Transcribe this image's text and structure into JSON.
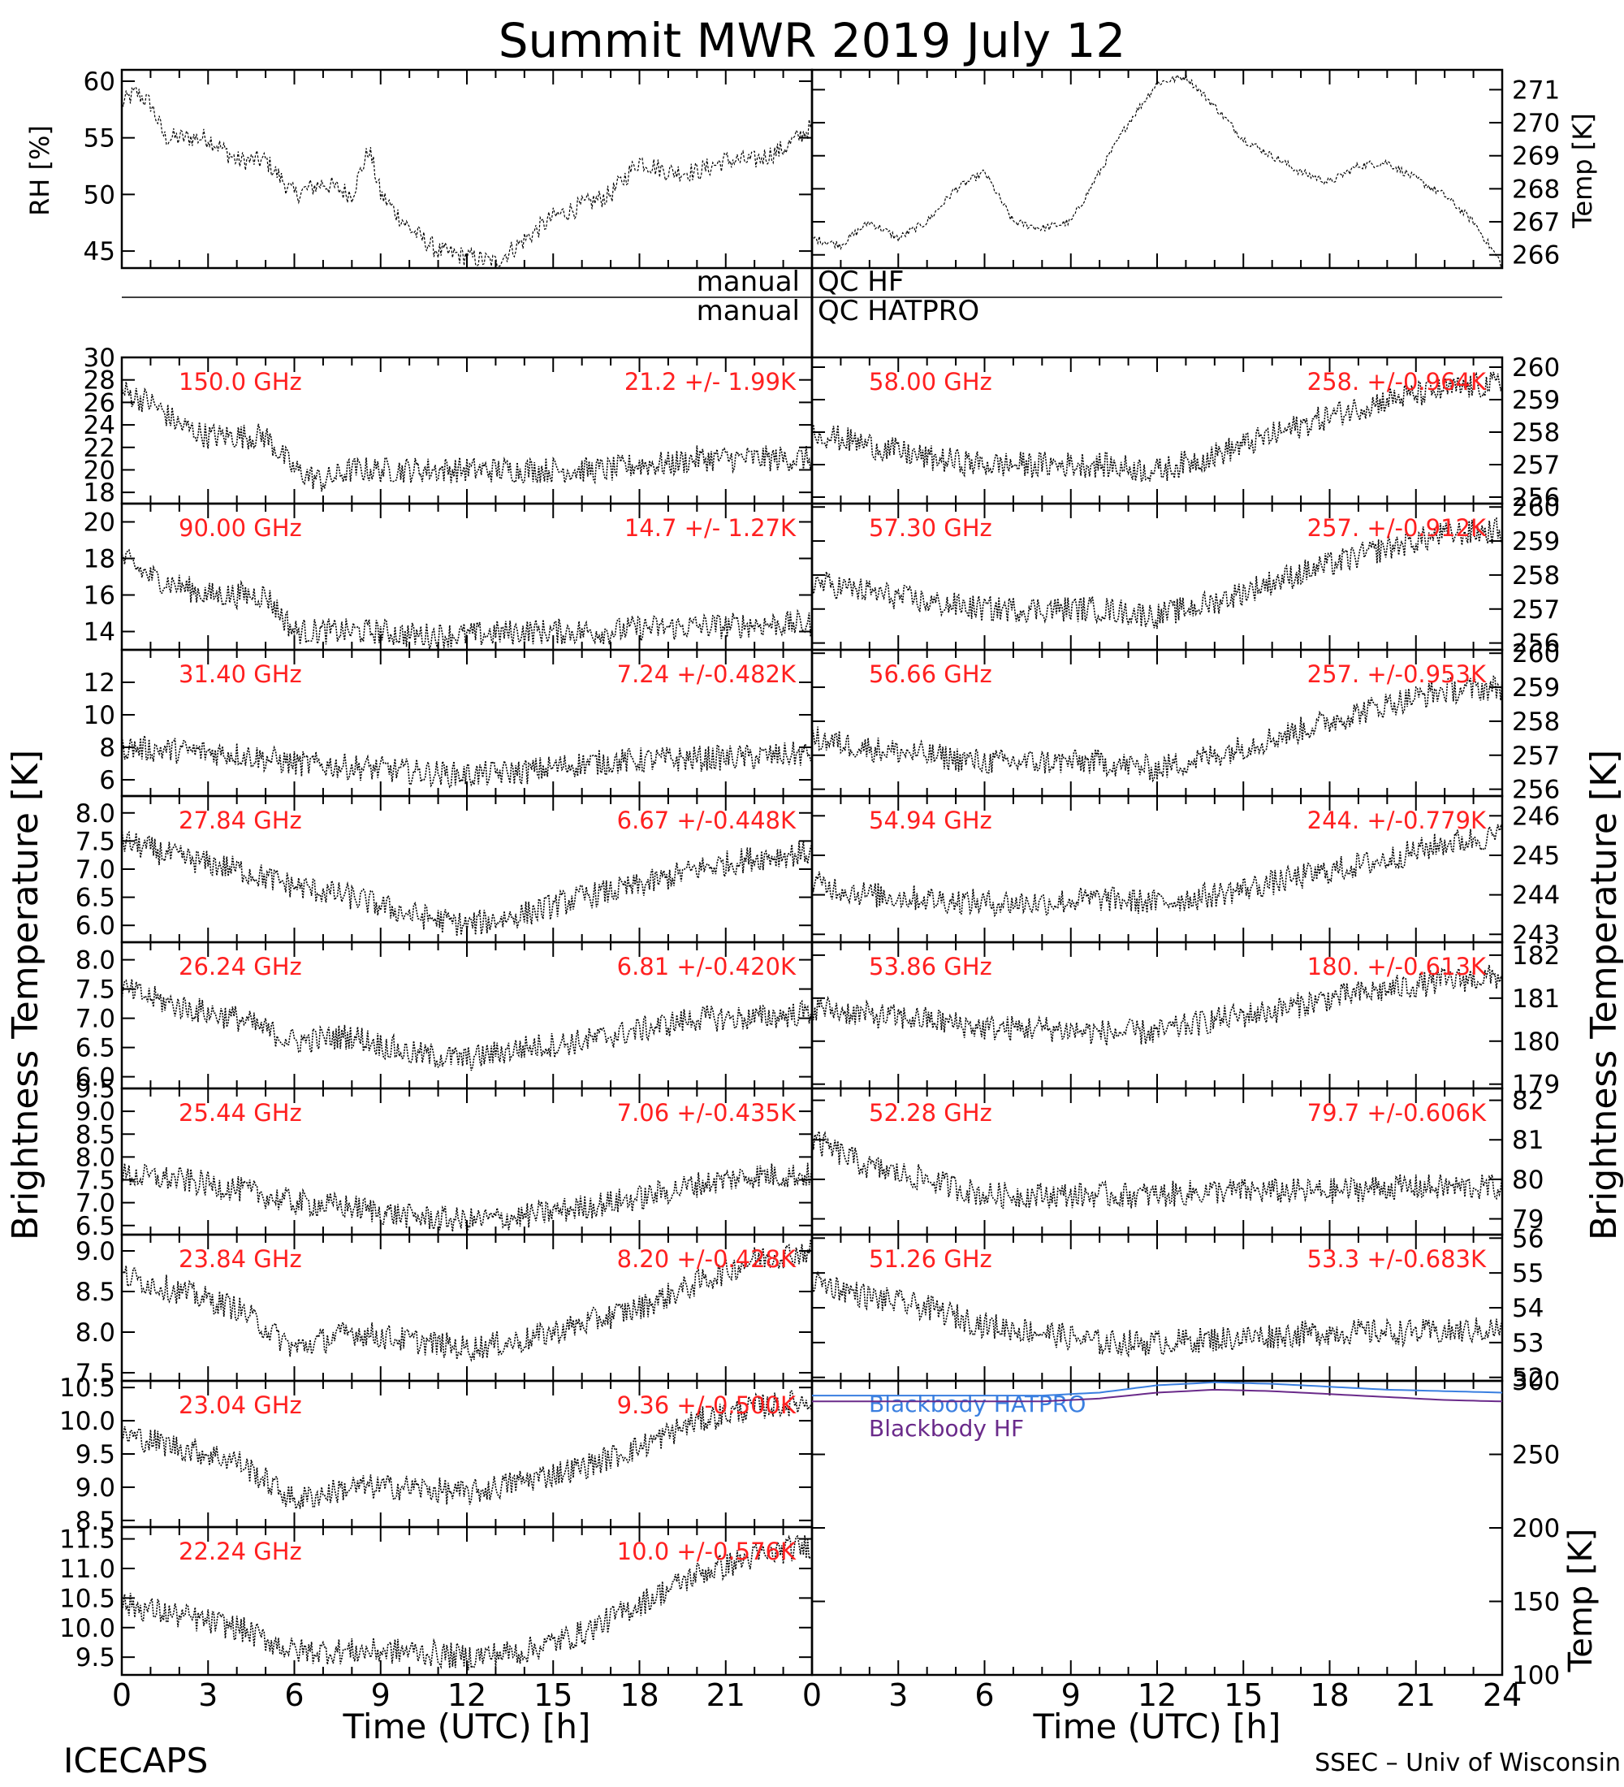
{
  "title": "Summit MWR 2019 July 12",
  "footer": {
    "left": "ICECAPS",
    "right": "SSEC – Univ of Wisconsin"
  },
  "x_axis": {
    "label": "Time (UTC) [h]",
    "ticks": [
      "0",
      "3",
      "6",
      "9",
      "12",
      "15",
      "18",
      "21",
      "24"
    ],
    "range": [
      0,
      24
    ]
  },
  "left_ylabel": "Brightness Temperature [K]",
  "right_ylabel": "Brightness Temperature [K]",
  "qc": {
    "left": "manual",
    "labels": [
      "QC HF",
      "QC HATPRO"
    ]
  },
  "colors": {
    "annotation": "#ff2020",
    "hatpro": "#3a7fe0",
    "hf": "#6a2a8a",
    "trace": "#000000"
  },
  "chart_data": [
    {
      "type": "scatter",
      "name": "RH [%]",
      "ylabel": "RH [%]",
      "ylim": [
        43.5,
        61
      ],
      "yticks": [
        "45",
        "50",
        "55",
        "60"
      ],
      "x": [
        0,
        0.5,
        1,
        1.5,
        2,
        3,
        4,
        5,
        6,
        7,
        8,
        8.6,
        9,
        10,
        11,
        12,
        13,
        14,
        15,
        16,
        17,
        18,
        19,
        20,
        21,
        22,
        23,
        24
      ],
      "y": [
        58,
        59,
        58,
        55,
        55,
        55,
        53,
        53,
        50,
        51,
        50,
        54,
        50,
        47,
        45,
        44.5,
        44,
        46,
        48,
        49,
        50,
        53,
        52,
        52,
        53,
        53,
        54,
        56
      ]
    },
    {
      "type": "line",
      "name": "Temp [K]",
      "ylabel": "Temp [K]",
      "ylim": [
        265.6,
        271.6
      ],
      "yticks": [
        "266",
        "267",
        "268",
        "269",
        "270",
        "271"
      ],
      "x": [
        0,
        1,
        2,
        3,
        4,
        5,
        6,
        7,
        8,
        9,
        10,
        11,
        12,
        13,
        14,
        15,
        16,
        17,
        18,
        19,
        20,
        21,
        22,
        23,
        24
      ],
      "y": [
        266.5,
        266.3,
        267,
        266.5,
        267,
        268,
        268.5,
        267,
        266.8,
        267,
        268.5,
        270,
        271.2,
        271.4,
        270.5,
        269.5,
        269,
        268.5,
        268.2,
        268.7,
        268.8,
        268.3,
        267.8,
        267,
        265.7
      ]
    },
    {
      "type": "scatter",
      "freq": "150.0 GHz",
      "stats": "21.2 +/-  1.99K",
      "ylim": [
        17,
        30
      ],
      "yticks": [
        "18",
        "20",
        "22",
        "24",
        "26",
        "28",
        "30"
      ],
      "x": [
        0,
        1,
        2,
        3,
        4,
        5,
        6,
        7,
        8,
        9,
        10,
        11,
        12,
        13,
        14,
        15,
        16,
        17,
        18,
        19,
        20,
        21,
        22,
        23,
        24
      ],
      "y": [
        27,
        26,
        24,
        23,
        23,
        23,
        20,
        19,
        20,
        20,
        20,
        20,
        20,
        20,
        20,
        20,
        20,
        20,
        20.5,
        20.5,
        21,
        21,
        21,
        21,
        21
      ]
    },
    {
      "type": "scatter",
      "freq": "90.00 GHz",
      "stats": "14.7 +/-  1.27K",
      "ylim": [
        13,
        21
      ],
      "yticks": [
        "14",
        "16",
        "18",
        "20"
      ],
      "x": [
        0,
        1,
        2,
        3,
        4,
        5,
        6,
        7,
        8,
        9,
        10,
        11,
        12,
        13,
        14,
        15,
        16,
        17,
        18,
        19,
        20,
        21,
        22,
        23,
        24
      ],
      "y": [
        18,
        17,
        16.5,
        16,
        16,
        16,
        14,
        14,
        14,
        14,
        13.8,
        13.8,
        13.8,
        13.9,
        14,
        14,
        14,
        14,
        14.2,
        14.2,
        14.3,
        14.3,
        14.4,
        14.4,
        14.4
      ]
    },
    {
      "type": "scatter",
      "freq": "31.40 GHz",
      "stats": "7.24 +/-0.482K",
      "ylim": [
        5,
        14
      ],
      "yticks": [
        "6",
        "8",
        "10",
        "12"
      ],
      "x": [
        0,
        2,
        4,
        6,
        8,
        10,
        12,
        14,
        16,
        18,
        20,
        22,
        24
      ],
      "y": [
        8,
        7.8,
        7.6,
        7,
        6.8,
        6.5,
        6.3,
        6.5,
        7,
        7.2,
        7.3,
        7.4,
        7.6
      ]
    },
    {
      "type": "scatter",
      "freq": "27.84 GHz",
      "stats": "6.67 +/-0.448K",
      "ylim": [
        5.7,
        8.3
      ],
      "yticks": [
        "6.0",
        "6.5",
        "7.0",
        "7.5",
        "8.0"
      ],
      "x": [
        0,
        2,
        4,
        6,
        8,
        10,
        12,
        14,
        16,
        18,
        20,
        22,
        24
      ],
      "y": [
        7.5,
        7.2,
        7.0,
        6.7,
        6.5,
        6.2,
        6.0,
        6.2,
        6.5,
        6.7,
        7.0,
        7.2,
        7.3
      ]
    },
    {
      "type": "scatter",
      "freq": "26.24 GHz",
      "stats": "6.81 +/-0.420K",
      "ylim": [
        5.8,
        8.3
      ],
      "yticks": [
        "6.0",
        "6.5",
        "7.0",
        "7.5",
        "8.0"
      ],
      "x": [
        0,
        2,
        4,
        6,
        8,
        10,
        12,
        14,
        16,
        18,
        20,
        22,
        24
      ],
      "y": [
        7.5,
        7.2,
        7.0,
        6.6,
        6.7,
        6.4,
        6.3,
        6.5,
        6.6,
        6.8,
        7.0,
        7.0,
        7.1
      ]
    },
    {
      "type": "scatter",
      "freq": "25.44 GHz",
      "stats": "7.06 +/-0.435K",
      "ylim": [
        6.3,
        9.5
      ],
      "yticks": [
        "6.5",
        "7.0",
        "7.5",
        "8.0",
        "8.5",
        "9.0",
        "9.5"
      ],
      "x": [
        0,
        2,
        4,
        6,
        8,
        10,
        12,
        14,
        16,
        18,
        20,
        22,
        24
      ],
      "y": [
        7.6,
        7.5,
        7.3,
        7.0,
        6.9,
        6.7,
        6.6,
        6.7,
        6.9,
        7.1,
        7.4,
        7.6,
        7.6
      ]
    },
    {
      "type": "scatter",
      "freq": "23.84 GHz",
      "stats": "8.20 +/-0.428K",
      "ylim": [
        7.4,
        9.2
      ],
      "yticks": [
        "7.5",
        "8.0",
        "8.5",
        "9.0"
      ],
      "x": [
        0,
        2,
        4,
        6,
        8,
        10,
        12,
        14,
        16,
        18,
        20,
        22,
        24
      ],
      "y": [
        8.7,
        8.5,
        8.3,
        7.8,
        8.0,
        7.9,
        7.8,
        7.9,
        8.1,
        8.3,
        8.6,
        8.9,
        9.0
      ]
    },
    {
      "type": "scatter",
      "freq": "23.04 GHz",
      "stats": "9.36 +/-0.500K",
      "ylim": [
        8.4,
        10.6
      ],
      "yticks": [
        "8.5",
        "9.0",
        "9.5",
        "10.0",
        "10.5"
      ],
      "x": [
        0,
        2,
        4,
        6,
        8,
        10,
        12,
        14,
        16,
        18,
        20,
        22,
        24
      ],
      "y": [
        9.8,
        9.6,
        9.4,
        8.8,
        9.0,
        9.0,
        8.9,
        9.1,
        9.3,
        9.6,
        10.0,
        10.2,
        10.3
      ]
    },
    {
      "type": "scatter",
      "freq": "22.24 GHz",
      "stats": "10.0 +/-0.576K",
      "ylim": [
        9.2,
        11.7
      ],
      "yticks": [
        "9.5",
        "10.0",
        "10.5",
        "11.0",
        "11.5"
      ],
      "x": [
        0,
        2,
        4,
        6,
        8,
        10,
        12,
        14,
        16,
        18,
        20,
        22,
        24
      ],
      "y": [
        10.4,
        10.2,
        10.0,
        9.6,
        9.6,
        9.6,
        9.5,
        9.6,
        9.9,
        10.4,
        10.9,
        11.2,
        11.4
      ]
    },
    {
      "type": "scatter",
      "freq": "58.00 GHz",
      "stats": "258. +/-0.964K",
      "ylim": [
        255.8,
        260.3
      ],
      "yticks": [
        "256",
        "257",
        "258",
        "259",
        "260"
      ],
      "x": [
        0,
        2,
        4,
        6,
        8,
        10,
        12,
        14,
        16,
        18,
        20,
        22,
        24
      ],
      "y": [
        258,
        257.6,
        257.2,
        257,
        257,
        257,
        256.8,
        257.3,
        257.9,
        258.5,
        259,
        259.3,
        259.5
      ]
    },
    {
      "type": "scatter",
      "freq": "57.30 GHz",
      "stats": "257. +/-0.912K",
      "ylim": [
        255.8,
        260.1
      ],
      "yticks": [
        "256",
        "257",
        "258",
        "259",
        "260"
      ],
      "x": [
        0,
        2,
        4,
        6,
        8,
        10,
        12,
        14,
        16,
        18,
        20,
        22,
        24
      ],
      "y": [
        257.8,
        257.5,
        257.2,
        257,
        257,
        257,
        256.8,
        257.2,
        257.8,
        258.3,
        258.8,
        259.2,
        259.3
      ]
    },
    {
      "type": "scatter",
      "freq": "56.66 GHz",
      "stats": "257. +/-0.953K",
      "ylim": [
        255.8,
        260.1
      ],
      "yticks": [
        "256",
        "257",
        "258",
        "259",
        "260"
      ],
      "x": [
        0,
        2,
        4,
        6,
        8,
        10,
        12,
        14,
        16,
        18,
        20,
        22,
        24
      ],
      "y": [
        257.5,
        257.2,
        257,
        256.8,
        256.8,
        256.8,
        256.6,
        257,
        257.5,
        258,
        258.5,
        258.9,
        259
      ]
    },
    {
      "type": "scatter",
      "freq": "54.94 GHz",
      "stats": "244. +/-0.779K",
      "ylim": [
        242.8,
        246.5
      ],
      "yticks": [
        "243",
        "244",
        "245",
        "246"
      ],
      "x": [
        0,
        2,
        4,
        6,
        8,
        10,
        12,
        14,
        16,
        18,
        20,
        22,
        24
      ],
      "y": [
        244.3,
        244,
        243.9,
        243.8,
        243.8,
        243.9,
        243.8,
        244,
        244.3,
        244.6,
        244.9,
        245.3,
        245.5
      ]
    },
    {
      "type": "scatter",
      "freq": "53.86 GHz",
      "stats": "180. +/-0.613K",
      "ylim": [
        178.9,
        182.3
      ],
      "yticks": [
        "179",
        "180",
        "181",
        "182"
      ],
      "x": [
        0,
        2,
        4,
        6,
        8,
        10,
        12,
        14,
        16,
        18,
        20,
        22,
        24
      ],
      "y": [
        180.8,
        180.6,
        180.5,
        180.3,
        180.3,
        180.2,
        180.2,
        180.5,
        180.7,
        181,
        181.2,
        181.4,
        181.5
      ]
    },
    {
      "type": "scatter",
      "freq": "52.28 GHz",
      "stats": "79.7 +/-0.606K",
      "ylim": [
        78.6,
        82.3
      ],
      "yticks": [
        "79",
        "80",
        "81",
        "82"
      ],
      "x": [
        0,
        2,
        4,
        6,
        8,
        10,
        12,
        14,
        16,
        18,
        20,
        22,
        24
      ],
      "y": [
        81,
        80.3,
        80,
        79.6,
        79.6,
        79.6,
        79.6,
        79.7,
        79.7,
        79.7,
        79.8,
        79.8,
        79.8
      ]
    },
    {
      "type": "scatter",
      "freq": "51.26 GHz",
      "stats": "53.3 +/-0.683K",
      "ylim": [
        51.9,
        56.1
      ],
      "yticks": [
        "52",
        "53",
        "54",
        "55",
        "56"
      ],
      "x": [
        0,
        2,
        4,
        6,
        8,
        10,
        12,
        14,
        16,
        18,
        20,
        22,
        24
      ],
      "y": [
        54.8,
        54.3,
        54,
        53.5,
        53.3,
        53,
        53,
        53.1,
        53.2,
        53.3,
        53.3,
        53.3,
        53.4
      ]
    },
    {
      "type": "line",
      "name": "Blackbody",
      "ylabel": "Temp [K]",
      "ylim": [
        100,
        300
      ],
      "yticks": [
        "100",
        "150",
        "200",
        "250",
        "300"
      ],
      "series": [
        {
          "name": "Blackbody HATPRO",
          "x": [
            0,
            4,
            8,
            10,
            12,
            14,
            16,
            18,
            20,
            22,
            24
          ],
          "y": [
            290,
            290,
            290,
            292,
            297,
            299,
            298,
            296,
            294,
            293,
            292
          ]
        },
        {
          "name": "Blackbody HF",
          "x": [
            0,
            4,
            8,
            10,
            12,
            14,
            16,
            18,
            20,
            22,
            24
          ],
          "y": [
            286,
            286,
            286,
            288,
            292,
            294,
            293,
            291,
            289,
            287,
            286
          ]
        }
      ]
    }
  ]
}
